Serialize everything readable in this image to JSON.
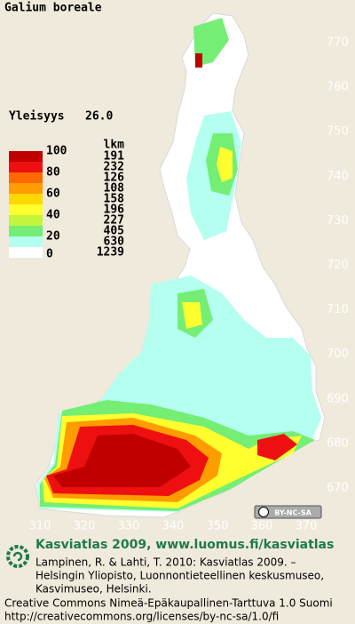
{
  "title": "Galium boreale",
  "frequency": {
    "label": "Yleisyys",
    "value": "26.0"
  },
  "legend": {
    "scale_labels": [
      "100",
      "80",
      "60",
      "40",
      "20",
      "0"
    ],
    "count_header": "lkm",
    "counts": [
      "191",
      "232",
      "126",
      "108",
      "158",
      "196",
      "227",
      "405",
      "630",
      "1239"
    ],
    "colors": [
      "#c00000",
      "#ee1010",
      "#ff6a00",
      "#ff9d00",
      "#ffd800",
      "#ffff30",
      "#c4f43c",
      "#74ee74",
      "#b4fff0",
      "#ffffff"
    ]
  },
  "map": {
    "y_labels": [
      "770",
      "760",
      "750",
      "740",
      "730",
      "720",
      "710",
      "700",
      "690",
      "680",
      "670"
    ],
    "x_labels": [
      "310",
      "320",
      "330",
      "340",
      "350",
      "360",
      "370"
    ]
  },
  "license_badge": "BY-NC-SA",
  "footer": {
    "heading": "Kasviatlas 2009, www.luomus.fi/kasviatlas",
    "citation": [
      "Lampinen, R. & Lahti, T. 2010: Kasviatlas 2009. –",
      "Helsingin Yliopisto, Luonnontieteellinen keskusmuseo,",
      "Kasvimuseo, Helsinki."
    ],
    "license": [
      "Creative Commons Nimeä-Epäkaupallinen-Tarttuva 1.0 Suomi",
      "http://creativecommons.org/licenses/by-nc-sa/1.0/fi"
    ]
  }
}
